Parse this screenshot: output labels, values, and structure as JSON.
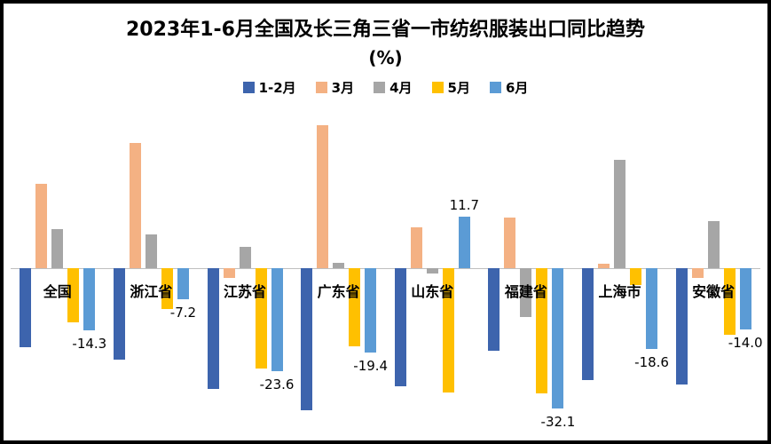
{
  "title": {
    "line1": "2023年1-6月全国及长三角三省一市纺织服装出口同比趋势",
    "line2": "(%)"
  },
  "chart_data": {
    "type": "bar",
    "title": "2023年1-6月全国及长三角三省一市纺织服装出口同比趋势(%)",
    "categories": [
      "全国",
      "浙江省",
      "江苏省",
      "广东省",
      "山东省",
      "福建省",
      "上海市",
      "安徽省"
    ],
    "series": [
      {
        "name": "1-2月",
        "color": "#3d64ad",
        "values": [
          -18.1,
          -20.9,
          -27.6,
          -32.6,
          -27.0,
          -19.0,
          -25.6,
          -26.6
        ],
        "data_labels": null
      },
      {
        "name": "3月",
        "color": "#f4b183",
        "values": [
          19.2,
          28.6,
          -2.4,
          32.5,
          9.3,
          11.5,
          1.0,
          -2.4
        ],
        "data_labels": null
      },
      {
        "name": "4月",
        "color": "#a6a6a6",
        "values": [
          8.9,
          7.7,
          4.8,
          1.2,
          -1.4,
          -11.3,
          24.6,
          10.7
        ],
        "data_labels": null
      },
      {
        "name": "5月",
        "color": "#ffc000",
        "values": [
          -12.5,
          -9.5,
          -23.0,
          -18.0,
          -28.4,
          -28.6,
          -4.0,
          -15.3
        ],
        "data_labels": null
      },
      {
        "name": "6月",
        "color": "#5b9bd5",
        "values": [
          -14.3,
          -7.2,
          -23.6,
          -19.4,
          11.7,
          -32.1,
          -18.6,
          -14.0
        ],
        "data_labels": [
          "-14.3",
          "-7.2",
          "-23.6",
          "-19.4",
          "11.7",
          "-32.1",
          "-18.6",
          "-14.0"
        ]
      }
    ],
    "ylim": [
      -36,
      35
    ],
    "grid": false,
    "legend_position": "top",
    "axis_line_color": "#bfbfbf",
    "frame_border_color": "#000000",
    "background_color": "#ffffff"
  }
}
